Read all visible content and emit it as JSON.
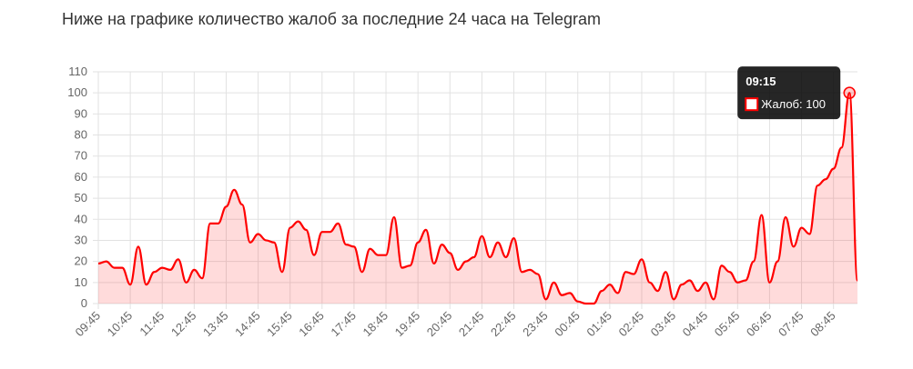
{
  "chart_data": {
    "type": "line",
    "title": "Ниже на графике количество жалоб за последние 24 часа на Telegram",
    "categories": [
      "09:45",
      null,
      null,
      null,
      "10:45",
      null,
      null,
      null,
      "11:45",
      null,
      null,
      null,
      "12:45",
      null,
      null,
      null,
      "13:45",
      null,
      null,
      null,
      "14:45",
      null,
      null,
      null,
      "15:45",
      null,
      null,
      null,
      "16:45",
      null,
      null,
      null,
      "17:45",
      null,
      null,
      null,
      "18:45",
      null,
      null,
      null,
      "19:45",
      null,
      null,
      null,
      "20:45",
      null,
      null,
      null,
      "21:45",
      null,
      null,
      null,
      "22:45",
      null,
      null,
      null,
      "23:45",
      null,
      null,
      null,
      "00:45",
      null,
      null,
      null,
      "01:45",
      null,
      null,
      null,
      "02:45",
      null,
      null,
      null,
      "03:45",
      null,
      null,
      null,
      "04:45",
      null,
      null,
      null,
      "05:45",
      null,
      null,
      null,
      "06:45",
      null,
      null,
      null,
      "07:45",
      null,
      null,
      null,
      "08:45",
      null,
      null,
      null
    ],
    "series": [
      {
        "name": "Жалоб",
        "color": "#ff0000",
        "fill": "rgba(255,0,0,0.14)",
        "values": [
          19,
          20,
          17,
          17,
          9,
          27,
          9,
          15,
          17,
          16,
          21,
          10,
          16,
          12,
          38,
          38,
          46,
          54,
          47,
          29,
          33,
          30,
          29,
          15,
          36,
          39,
          35,
          23,
          34,
          34,
          38,
          28,
          27,
          15,
          26,
          23,
          23,
          41,
          17,
          18,
          29,
          35,
          19,
          28,
          24,
          16,
          20,
          22,
          32,
          22,
          29,
          22,
          31,
          15,
          16,
          14,
          2,
          10,
          4,
          5,
          1,
          0,
          0,
          6,
          9,
          5,
          15,
          14,
          21,
          10,
          6,
          15,
          2,
          9,
          11,
          6,
          10,
          2,
          18,
          15,
          10,
          11,
          20,
          42,
          10,
          20,
          41,
          27,
          36,
          33,
          56,
          59,
          64,
          74,
          100,
          11
        ]
      }
    ],
    "ylim": [
      0,
      110
    ],
    "yticks": [
      0,
      10,
      20,
      30,
      40,
      50,
      60,
      70,
      80,
      90,
      100,
      110
    ],
    "grid": true,
    "tooltip": {
      "index": 94,
      "title": "09:15",
      "label": "Жалоб: 100"
    }
  }
}
